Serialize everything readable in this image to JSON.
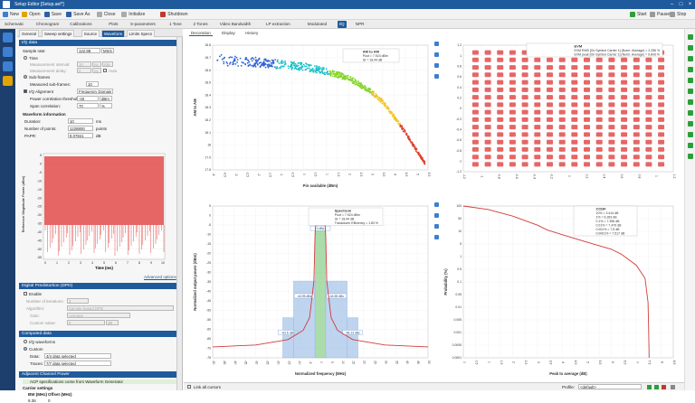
{
  "window": {
    "title": "Setup Editor [Setup.ael*]"
  },
  "toolbar": {
    "items": [
      {
        "label": "New",
        "color": "#3d7fd1"
      },
      {
        "label": "Open",
        "color": "#e1a400"
      },
      {
        "label": "Save",
        "color": "#2b5fa8"
      },
      {
        "label": "Save As",
        "color": "#2b5fa8"
      },
      {
        "label": "Close",
        "color": "#aaaaaa"
      },
      {
        "label": "Initialize",
        "color": "#aaaaaa"
      },
      {
        "label": "Shutdown",
        "color": "#c0392b"
      }
    ],
    "right": [
      {
        "label": "Start",
        "color": "#2e9e3a"
      },
      {
        "label": "Pause",
        "color": "#999999"
      },
      {
        "label": "Stop",
        "color": "#999999"
      }
    ]
  },
  "main_tabs": [
    {
      "label": "Schematic"
    },
    {
      "label": "Chronogram"
    },
    {
      "label": "Calibrations"
    },
    {
      "label": "Plots"
    },
    {
      "label": "S-parameters"
    },
    {
      "label": "1 Tone"
    },
    {
      "label": "2 Tones"
    },
    {
      "label": "Video Bandwidth"
    },
    {
      "label": "LP extraction"
    },
    {
      "label": "Modulated"
    },
    {
      "label": "I/Q",
      "active": true
    },
    {
      "label": "NPR"
    }
  ],
  "panel": {
    "tabs": [
      "General",
      "Sweep settings",
      "Source",
      "Waveform",
      "Limits Specs"
    ],
    "iq": {
      "header": "I/Q data",
      "sample_rate_label": "Sample rate:",
      "sample_rate_value": "122.88",
      "sample_rate_unit": "MS/s",
      "time_label": "Time",
      "meas_interval_label": "Measurement interval:",
      "meas_interval_value": "10",
      "meas_interval_unit": "ns",
      "meas_interval_unit2": "/div",
      "meas_delay_label": "Measurement delay:",
      "meas_delay_value": "0",
      "meas_delay_unit": "ns",
      "auto_label": "Auto",
      "subframes_label": "Sub-frames",
      "meas_subframes_label": "Measured sub-frames:",
      "meas_subframes_value": "10",
      "iq_align_label": "I/Q Alignment",
      "iq_align_value": "Frequency Domain",
      "power_corr_label": "Power correlation threshold:",
      "power_corr_value": "-40",
      "power_corr_unit": "dBm",
      "span_corr_label": "Span correlation:",
      "span_corr_value": "70",
      "span_corr_unit": "%"
    },
    "waveform": {
      "header": "Waveform information",
      "duration_label": "Duration:",
      "duration_value": "10",
      "duration_unit": "ms",
      "points_label": "Number of points:",
      "points_value": "1228800",
      "points_unit": "points",
      "papr_label": "PAPR:",
      "papr_value": "8.07841",
      "papr_unit": "dB",
      "ylabel": "Reference Magnitude Power (dBm)",
      "xlabel": "Time (ms)",
      "yticks": [
        "5",
        "0",
        "-5",
        "-10",
        "-15",
        "-20",
        "-25",
        "-30",
        "-35",
        "-40",
        "-45",
        "-50",
        "-55"
      ],
      "xticks": [
        "0",
        "1",
        "2",
        "3",
        "4",
        "5",
        "6",
        "7",
        "8",
        "9",
        "10"
      ],
      "advanced": "Advanced options"
    },
    "dpd": {
      "header": "Digital Predistortion (DPD)",
      "enable_label": "Enable",
      "iterations_label": "Number of iterations:",
      "iterations_value": "3",
      "algorithm_label": "Algorithm:",
      "algorithm_value": "Sample-based DPD",
      "gain_label": "Gain:",
      "gain_value": "Average",
      "custom_label": "Custom value:",
      "custom_value": "0",
      "custom_unit": "dB"
    },
    "computed": {
      "header": "Computed data",
      "iq_wave_label": "I/Q waveforms",
      "custom_label": "Custom",
      "data_label": "Data:",
      "data_value": "4/4 data selected",
      "traces_label": "Traces:",
      "traces_value": "7/7 data selected"
    },
    "acp": {
      "header": "Adjacent Channel Power",
      "note": "ACP specifications come from Waveform Generator",
      "carrier_label": "Carrier settings",
      "col_bw": "BW (MHz)",
      "col_offset": "Offset (MHz)",
      "row_bw": "9.36",
      "row_offset": "0"
    }
  },
  "work": {
    "tabs": [
      "Decoration",
      "Display",
      "History"
    ],
    "status": {
      "link_label": "Link all cursors",
      "profile_label": "Profile:",
      "profile_value": "<default>"
    }
  },
  "chart_data": [
    {
      "type": "scatter",
      "xlabel": "Pin available (dBm)",
      "ylabel": "AM to AM",
      "legend_title": "AM to AM",
      "legend_lines": [
        "Pout = 7.924 dBm",
        "GI = 18.44 dB"
      ],
      "xticks": [
        "-4",
        "-3.5",
        "-3",
        "-2.5",
        "-2",
        "-1.5",
        "-1",
        "-0.5",
        "0",
        "0.5",
        "1",
        "1.5",
        "2",
        "2.5",
        "3",
        "3.5",
        "4",
        "4.5",
        "5",
        "5.5"
      ],
      "yticks": [
        "18.8",
        "18.7",
        "18.6",
        "18.5",
        "18.4",
        "18.3",
        "18.2",
        "18.1",
        "18",
        "17.9",
        "17.8"
      ],
      "xlim": [
        -4,
        5.5
      ],
      "ylim": [
        17.75,
        18.85
      ],
      "trend": {
        "x": [
          -3.8,
          -3,
          -2,
          -1,
          0,
          1,
          2,
          3,
          3.5,
          4,
          4.5,
          5,
          5.4
        ],
        "y": [
          18.72,
          18.71,
          18.7,
          18.68,
          18.66,
          18.62,
          18.56,
          18.44,
          18.35,
          18.22,
          18.08,
          17.92,
          17.8
        ]
      }
    },
    {
      "type": "scatter",
      "xlabel": "",
      "ylabel": "",
      "legend_title": "EVM",
      "legend_lines": [
        "EVM RMS [On Symbol Carrier 1] (Norm. Average) = 2.256 %",
        "EVM peak [On Symbol Carrier 1] (Norm. Average) = 9.843 %"
      ],
      "xticks": [
        "-1.2",
        "-1",
        "-0.8",
        "-0.6",
        "-0.4",
        "-0.2",
        "0",
        "0.2",
        "0.4",
        "0.6",
        "0.8",
        "1",
        "1.2"
      ],
      "yticks": [
        "1.2",
        "1",
        "0.8",
        "0.6",
        "0.4",
        "0.2",
        "0",
        "-0.2",
        "-0.4",
        "-0.6",
        "-0.8",
        "-1",
        "-1.2"
      ],
      "xlim": [
        -1.3,
        1.3
      ],
      "ylim": [
        -1.3,
        1.3
      ],
      "grid_levels": 16
    },
    {
      "type": "bar",
      "xlabel": "Normalized frequency (MHz)",
      "ylabel": "Normalized output power (dBm)",
      "legend_title": "Spectrum",
      "legend_lines": [
        "Pout = 7.924 dBm",
        "GI = 18.44 dB",
        "Transducer Efficiency = 1.83 %"
      ],
      "xticks": [
        "-50",
        "-45",
        "-40",
        "-35",
        "-30",
        "-25",
        "-20",
        "-15",
        "-10",
        "-5",
        "0",
        "5",
        "10",
        "15",
        "20",
        "25",
        "30",
        "35",
        "40",
        "45",
        "50"
      ],
      "yticks": [
        "5",
        "0",
        "-5",
        "-10",
        "-15",
        "-20",
        "-25",
        "-30",
        "-35",
        "-40",
        "-45",
        "-50",
        "-55",
        "-60",
        "-65",
        "-70",
        "-75"
      ],
      "xlim": [
        -50,
        50
      ],
      "ylim": [
        -77,
        6
      ],
      "bands": [
        {
          "x0": -17.5,
          "x1": -12.5,
          "label": "-63.6 dBc",
          "level": -55,
          "color": "#a9c6ea"
        },
        {
          "x0": -12.5,
          "x1": -2.5,
          "label": "-44.95 dBc",
          "level": -35,
          "color": "#a9c6ea"
        },
        {
          "x0": -2.5,
          "x1": 2.5,
          "label": "0 dBc",
          "level": 2,
          "color": "#8fd18f"
        },
        {
          "x0": 2.5,
          "x1": 12.5,
          "label": "-44.55 dBc",
          "level": -35,
          "color": "#a9c6ea"
        },
        {
          "x0": 12.5,
          "x1": 17.5,
          "label": "-66.13 dBc",
          "level": -55,
          "color": "#a9c6ea"
        }
      ],
      "trace": {
        "x": [
          -50,
          -30,
          -15,
          -8,
          -5,
          -3,
          -2.5,
          -2,
          0,
          2,
          2.5,
          3,
          5,
          8,
          15,
          30,
          50
        ],
        "y": [
          -71,
          -70,
          -67,
          -62,
          -55,
          -35,
          -10,
          -1,
          0,
          -1,
          -10,
          -35,
          -55,
          -62,
          -67,
          -70,
          -71
        ]
      }
    },
    {
      "type": "line",
      "xlabel": "Peak to average (dB)",
      "ylabel": "Probability (%)",
      "legend_title": "CCDF",
      "legend_lines": [
        "10% = 3.414 dB",
        "1% = 6.393 dB",
        "0.1% = 7.356 dB",
        "0.01% = 7.479 dB",
        "0.001% = 7.5 dB",
        "0.0001% = 7.517 dB"
      ],
      "xticks": [
        "0",
        "0.5",
        "1",
        "1.5",
        "2",
        "2.5",
        "3",
        "3.5",
        "4",
        "4.5",
        "5",
        "5.5",
        "6",
        "6.5",
        "7",
        "7.5",
        "8",
        "8.5"
      ],
      "yticks": [
        "100",
        "50",
        "10",
        "5",
        "1",
        "0.5",
        "0.1",
        "0.05",
        "0.01",
        "0.005",
        "0.001",
        "0.0005",
        "0.0001"
      ],
      "xlim": [
        0,
        8.5
      ],
      "ylog": true,
      "ylim": [
        5e-05,
        100
      ],
      "x": [
        0,
        1,
        2,
        3,
        3.414,
        4,
        5,
        6,
        6.393,
        7,
        7.356,
        7.479,
        7.5,
        7.517,
        7.52
      ],
      "y": [
        100,
        72,
        38,
        16,
        10,
        6.5,
        3.2,
        1.6,
        1,
        0.35,
        0.1,
        0.01,
        0.001,
        0.0001,
        5e-05
      ]
    }
  ]
}
